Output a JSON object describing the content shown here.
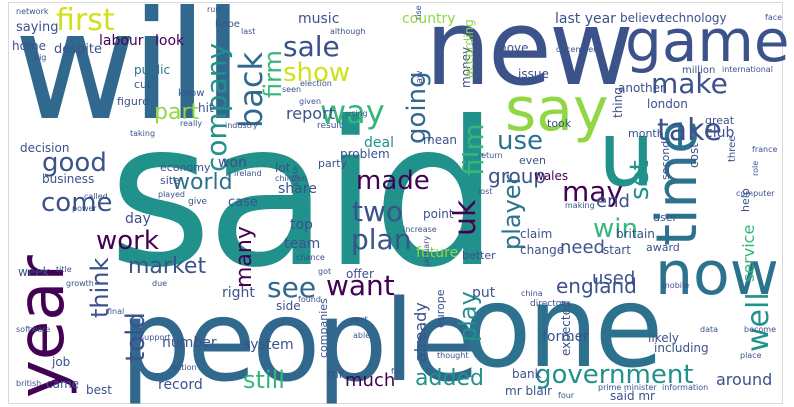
{
  "colors": {
    "dark_purple": "#440154",
    "indigo": "#3b528b",
    "slate_blue": "#31688e",
    "teal": "#21918c",
    "green": "#35b779",
    "lime": "#90d743",
    "yellow": "#d0e11c",
    "deep_blue": "#2c728e"
  },
  "words": {
    "said": "said",
    "will": "will",
    "new": "new",
    "people": "people",
    "one": "one",
    "year": "year",
    "game": "game",
    "say": "say",
    "u": "u",
    "time": "time",
    "now": "now",
    "first": "first",
    "sale": "sale",
    "show": "show",
    "way": "way",
    "back": "back",
    "company": "company",
    "firm": "firm",
    "make": "make",
    "take": "take",
    "use": "use",
    "going": "going",
    "part": "part",
    "film": "film",
    "uk": "uk",
    "good": "good",
    "come": "come",
    "world": "world",
    "work": "work",
    "made": "made",
    "two": "two",
    "may": "may",
    "set": "set",
    "group": "group",
    "plan": "plan",
    "player": "player",
    "win": "win",
    "end": "end",
    "think": "think",
    "market": "market",
    "see": "see",
    "want": "want",
    "told": "told",
    "many": "many",
    "well": "well",
    "still": "still",
    "much": "much",
    "added": "added",
    "government": "government",
    "play": "play",
    "england": "england",
    "need": "need",
    "used": "used",
    "service": "service",
    "labour": "labour",
    "look": "look",
    "music": "music",
    "country": "country",
    "last_year": "last year",
    "believe": "believe",
    "technology": "technology",
    "move": "move",
    "hope": "hope",
    "public": "public",
    "cut": "cut",
    "figure": "figure",
    "hit": "hit",
    "know": "know",
    "report": "report",
    "deal": "deal",
    "london": "london",
    "another": "another",
    "issue": "issue",
    "million": "million",
    "money": "money",
    "decision": "decision",
    "problem": "problem",
    "mean": "mean",
    "club": "club",
    "great": "great",
    "month": "month",
    "took": "took",
    "economy": "economy",
    "party": "party",
    "even": "even",
    "wales": "wales",
    "won": "won",
    "lot": "lot",
    "share": "share",
    "business": "business",
    "site": "site",
    "case": "case",
    "day": "day",
    "top": "top",
    "team": "team",
    "future": "future",
    "claim": "claim",
    "change": "change",
    "britain": "britain",
    "award": "award",
    "user": "user",
    "second": "second",
    "cost": "cost",
    "week": "week",
    "offer": "offer",
    "put": "put",
    "already": "already",
    "better": "better",
    "start": "start",
    "number": "number",
    "right": "right",
    "side": "side",
    "system": "system",
    "companies": "companies",
    "mr": "mr",
    "record": "record",
    "bank": "bank",
    "former": "former",
    "expected": "expected",
    "likely": "likely",
    "including": "including",
    "around": "around",
    "job": "job",
    "came": "came",
    "best": "best",
    "mr_blair": "mr blair",
    "said_mr": "said mr",
    "prime_minister": "prime minister",
    "information": "information",
    "saying": "saying",
    "home": "home",
    "despite": "despite",
    "according": "according",
    "thing": "thing",
    "last": "last",
    "although": "although",
    "election": "election",
    "law": "law",
    "rise": "rise",
    "network": "network",
    "big": "big",
    "run": "run",
    "really": "really",
    "given": "given",
    "industry": "industry",
    "result": "result",
    "seen": "seen",
    "using": "using",
    "international": "international",
    "december": "december",
    "three": "three",
    "help": "help",
    "france": "france",
    "role": "role",
    "ireland": "ireland",
    "children": "children",
    "point": "point",
    "lost": "lost",
    "making": "making",
    "increase": "increase",
    "played": "played",
    "give": "give",
    "due": "due",
    "growth": "growth",
    "power": "power",
    "called": "called",
    "chance": "chance",
    "title": "title",
    "got": "got",
    "found": "found",
    "europe": "europe",
    "director": "director",
    "china": "china",
    "mobile": "mobile",
    "next": "next",
    "able": "able",
    "support": "support",
    "final": "final",
    "software": "software",
    "british": "british",
    "data": "data",
    "become": "become",
    "thought": "thought",
    "four": "four",
    "computer": "computer",
    "taking": "taking",
    "state": "state",
    "january": "january",
    "place": "place",
    "return": "return",
    "action": "action",
    "far": "far",
    "face": "face"
  }
}
